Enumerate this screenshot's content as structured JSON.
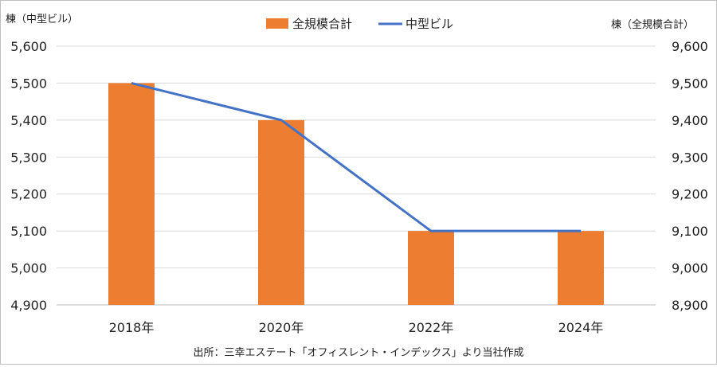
{
  "chart_data": {
    "type": "bar",
    "categories": [
      "2018年",
      "2020年",
      "2022年",
      "2024年"
    ],
    "series": [
      {
        "name": "全規模合計",
        "type": "bar",
        "axis": "right",
        "values": [
          9500,
          9400,
          9100,
          9100
        ],
        "color": "#ED7D31"
      },
      {
        "name": "中型ビル",
        "type": "line",
        "axis": "left",
        "values": [
          5500,
          5400,
          5100,
          5100
        ],
        "color": "#4472C4"
      }
    ],
    "left_axis": {
      "label": "棟（中型ビル）",
      "range": [
        4900,
        5600
      ],
      "ticks": [
        "4,900",
        "5,000",
        "5,100",
        "5,200",
        "5,300",
        "5,400",
        "5,500",
        "5,600"
      ]
    },
    "right_axis": {
      "label": "棟（全規模合計）",
      "range": [
        8900,
        9600
      ],
      "ticks": [
        "8,900",
        "9,000",
        "9,100",
        "9,200",
        "9,300",
        "9,400",
        "9,500",
        "9,600"
      ]
    },
    "grid": true,
    "legend_position": "top-center",
    "source": "出所：三幸エステート「オフィスレント・インデックス」より当社作成"
  }
}
